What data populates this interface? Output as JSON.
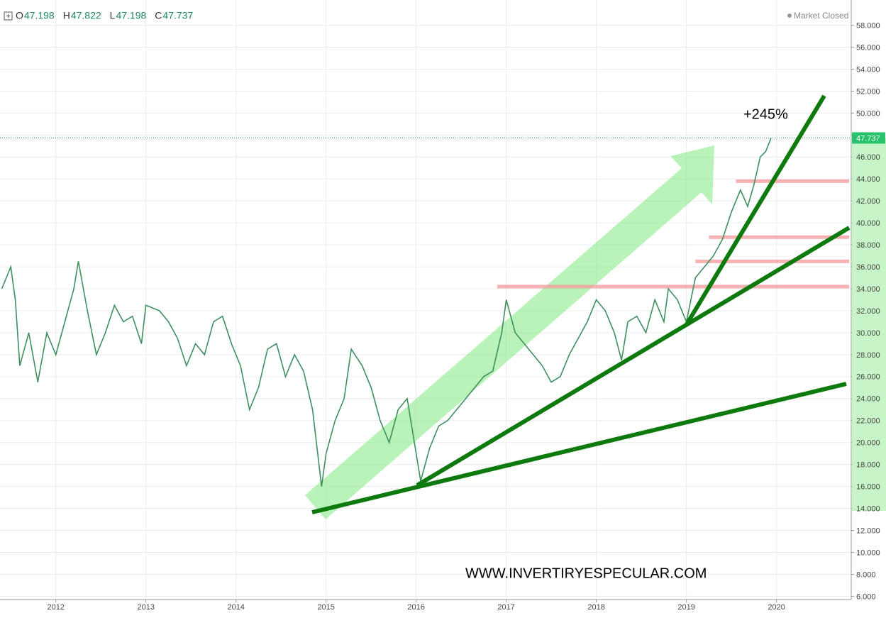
{
  "chart_data": {
    "type": "line",
    "ohlc": [
      {
        "label": "O",
        "value": 47.198
      },
      {
        "label": "H",
        "value": 47.822
      },
      {
        "label": "L",
        "value": 47.198
      },
      {
        "label": "C",
        "value": 47.737
      }
    ],
    "status": "Market Closed",
    "annotation": "+245%",
    "watermark": "WWW.INVERTIRYESPECULAR.COM",
    "last_price": 47.737,
    "series": [
      {
        "color": "#3f8f5f",
        "x": [
          2011.4,
          2011.5,
          2011.55,
          2011.6,
          2011.7,
          2011.8,
          2011.9,
          2012.0,
          2012.1,
          2012.2,
          2012.25,
          2012.35,
          2012.45,
          2012.55,
          2012.65,
          2012.75,
          2012.85,
          2012.95,
          2013.0,
          2013.15,
          2013.25,
          2013.35,
          2013.45,
          2013.55,
          2013.65,
          2013.75,
          2013.85,
          2013.95,
          2014.05,
          2014.15,
          2014.25,
          2014.35,
          2014.45,
          2014.55,
          2014.65,
          2014.75,
          2014.85,
          2014.95,
          2015.0,
          2015.1,
          2015.2,
          2015.28,
          2015.4,
          2015.5,
          2015.6,
          2015.7,
          2015.8,
          2015.9,
          2016.0,
          2016.05,
          2016.15,
          2016.25,
          2016.35,
          2016.45,
          2016.55,
          2016.65,
          2016.75,
          2016.85,
          2016.95,
          2017.0,
          2017.1,
          2017.2,
          2017.3,
          2017.4,
          2017.5,
          2017.6,
          2017.7,
          2017.8,
          2017.9,
          2018.0,
          2018.1,
          2018.2,
          2018.28,
          2018.35,
          2018.45,
          2018.55,
          2018.65,
          2018.75,
          2018.8,
          2018.9,
          2019.0,
          2019.1,
          2019.2,
          2019.3,
          2019.4,
          2019.5,
          2019.6,
          2019.68,
          2019.75,
          2019.82,
          2019.88,
          2019.94
        ],
        "values": [
          34,
          36,
          33,
          27,
          30,
          25.5,
          30,
          28,
          31,
          34,
          36.5,
          32,
          28,
          30,
          32.5,
          31,
          31.5,
          29,
          32.5,
          32,
          31,
          29.5,
          27,
          29,
          28,
          31,
          31.5,
          29,
          27,
          23,
          25,
          28.5,
          29,
          26,
          28,
          26.5,
          23,
          16,
          19,
          22,
          24,
          28.5,
          27,
          25,
          22,
          20,
          23,
          24,
          19,
          16.5,
          19.5,
          21.5,
          22,
          23,
          24,
          25,
          26,
          26.5,
          30,
          33,
          30,
          29,
          28,
          27,
          25.5,
          26,
          28,
          29.5,
          31,
          33,
          32,
          30,
          27.5,
          31,
          31.5,
          30,
          33,
          31,
          34,
          33,
          31,
          35,
          36,
          37,
          38.5,
          41,
          43,
          41.5,
          43.5,
          46,
          46.5,
          47.737
        ]
      }
    ],
    "levels": [
      {
        "value": 34.2,
        "from": 2016.9
      },
      {
        "value": 36.5,
        "from": 2019.1
      },
      {
        "value": 38.7,
        "from": 2019.25
      },
      {
        "value": 43.8,
        "from": 2019.55
      }
    ],
    "xlim": [
      2011.38,
      2020.83
    ],
    "xticks": [
      2012,
      2013,
      2014,
      2015,
      2016,
      2017,
      2018,
      2019,
      2020
    ],
    "ylim": [
      5.7,
      60.3
    ],
    "yticks": [
      {
        "value": 6,
        "label": "6.000"
      },
      {
        "value": 8,
        "label": "8.000"
      },
      {
        "value": 10,
        "label": "10.000"
      },
      {
        "value": 12,
        "label": "12.000"
      },
      {
        "value": 14,
        "label": "14.000"
      },
      {
        "value": 16,
        "label": "16.000"
      },
      {
        "value": 18,
        "label": "18.000"
      },
      {
        "value": 20,
        "label": "20.000"
      },
      {
        "value": 22,
        "label": "22.000"
      },
      {
        "value": 24,
        "label": "24.000"
      },
      {
        "value": 26,
        "label": "26.000"
      },
      {
        "value": 28,
        "label": "28.000"
      },
      {
        "value": 30,
        "label": "30.000"
      },
      {
        "value": 32,
        "label": "32.000"
      },
      {
        "value": 34,
        "label": "34.000"
      },
      {
        "value": 36,
        "label": "36.000"
      },
      {
        "value": 38,
        "label": "38.000"
      },
      {
        "value": 40,
        "label": "40.000"
      },
      {
        "value": 42,
        "label": "42.000"
      },
      {
        "value": 44,
        "label": "44.000"
      },
      {
        "value": 46,
        "label": "46.000"
      },
      {
        "value": 48,
        "label": "48.000"
      },
      {
        "value": 50,
        "label": "50.000"
      },
      {
        "value": 52,
        "label": "52.000"
      },
      {
        "value": 54,
        "label": "54.000"
      },
      {
        "value": 56,
        "label": "56.000"
      },
      {
        "value": 58,
        "label": "58.000"
      }
    ],
    "grid": true
  }
}
